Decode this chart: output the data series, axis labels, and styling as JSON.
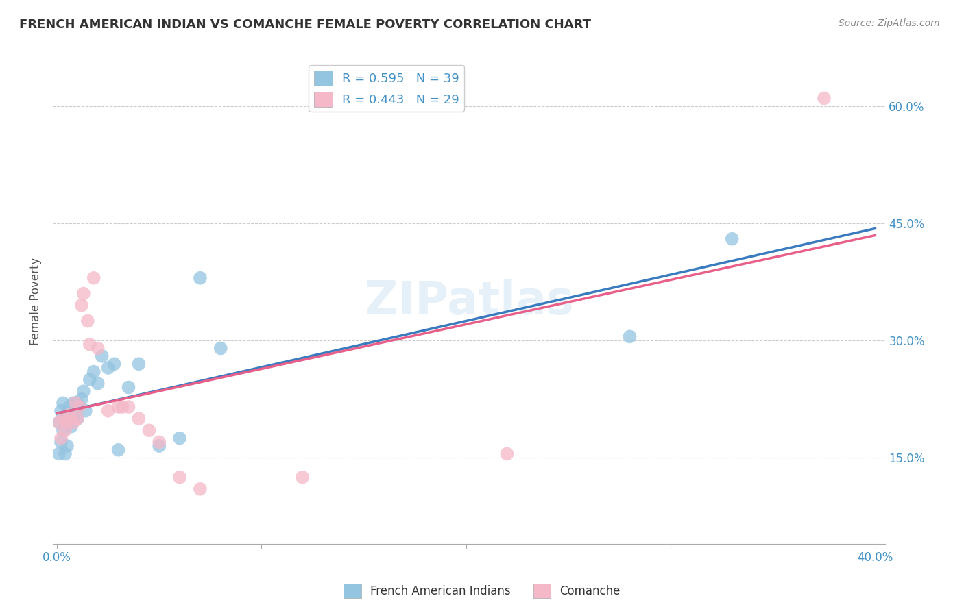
{
  "title": "FRENCH AMERICAN INDIAN VS COMANCHE FEMALE POVERTY CORRELATION CHART",
  "source": "Source: ZipAtlas.com",
  "ylabel": "Female Poverty",
  "ytick_labels": [
    "15.0%",
    "30.0%",
    "45.0%",
    "60.0%"
  ],
  "ytick_values": [
    0.15,
    0.3,
    0.45,
    0.6
  ],
  "xlim": [
    -0.002,
    0.405
  ],
  "ylim": [
    0.04,
    0.66
  ],
  "watermark": "ZIPatlas",
  "legend_r1": "R = 0.595",
  "legend_n1": "N = 39",
  "legend_r2": "R = 0.443",
  "legend_n2": "N = 29",
  "blue_color": "#93c4e0",
  "pink_color": "#f4b8c8",
  "line_blue": "#3a7bbf",
  "line_pink": "#e8608a",
  "french_x": [
    0.001,
    0.001,
    0.002,
    0.002,
    0.003,
    0.003,
    0.004,
    0.004,
    0.005,
    0.005,
    0.006,
    0.006,
    0.007,
    0.007,
    0.008,
    0.008,
    0.009,
    0.009,
    0.01,
    0.01,
    0.011,
    0.012,
    0.013,
    0.014,
    0.016,
    0.018,
    0.02,
    0.022,
    0.025,
    0.028,
    0.03,
    0.035,
    0.04,
    0.05,
    0.06,
    0.07,
    0.08,
    0.28,
    0.33
  ],
  "french_y": [
    0.195,
    0.155,
    0.21,
    0.17,
    0.22,
    0.185,
    0.2,
    0.155,
    0.2,
    0.165,
    0.215,
    0.195,
    0.21,
    0.19,
    0.22,
    0.2,
    0.22,
    0.215,
    0.22,
    0.2,
    0.215,
    0.225,
    0.235,
    0.21,
    0.25,
    0.26,
    0.245,
    0.28,
    0.265,
    0.27,
    0.16,
    0.24,
    0.27,
    0.165,
    0.175,
    0.38,
    0.29,
    0.305,
    0.43
  ],
  "comanche_x": [
    0.001,
    0.002,
    0.003,
    0.004,
    0.005,
    0.006,
    0.007,
    0.008,
    0.009,
    0.01,
    0.011,
    0.012,
    0.013,
    0.015,
    0.016,
    0.018,
    0.02,
    0.025,
    0.03,
    0.032,
    0.035,
    0.04,
    0.045,
    0.05,
    0.06,
    0.07,
    0.12,
    0.22,
    0.375
  ],
  "comanche_y": [
    0.195,
    0.175,
    0.2,
    0.185,
    0.195,
    0.205,
    0.2,
    0.195,
    0.22,
    0.2,
    0.215,
    0.345,
    0.36,
    0.325,
    0.295,
    0.38,
    0.29,
    0.21,
    0.215,
    0.215,
    0.215,
    0.2,
    0.185,
    0.17,
    0.125,
    0.11,
    0.125,
    0.155,
    0.61
  ]
}
